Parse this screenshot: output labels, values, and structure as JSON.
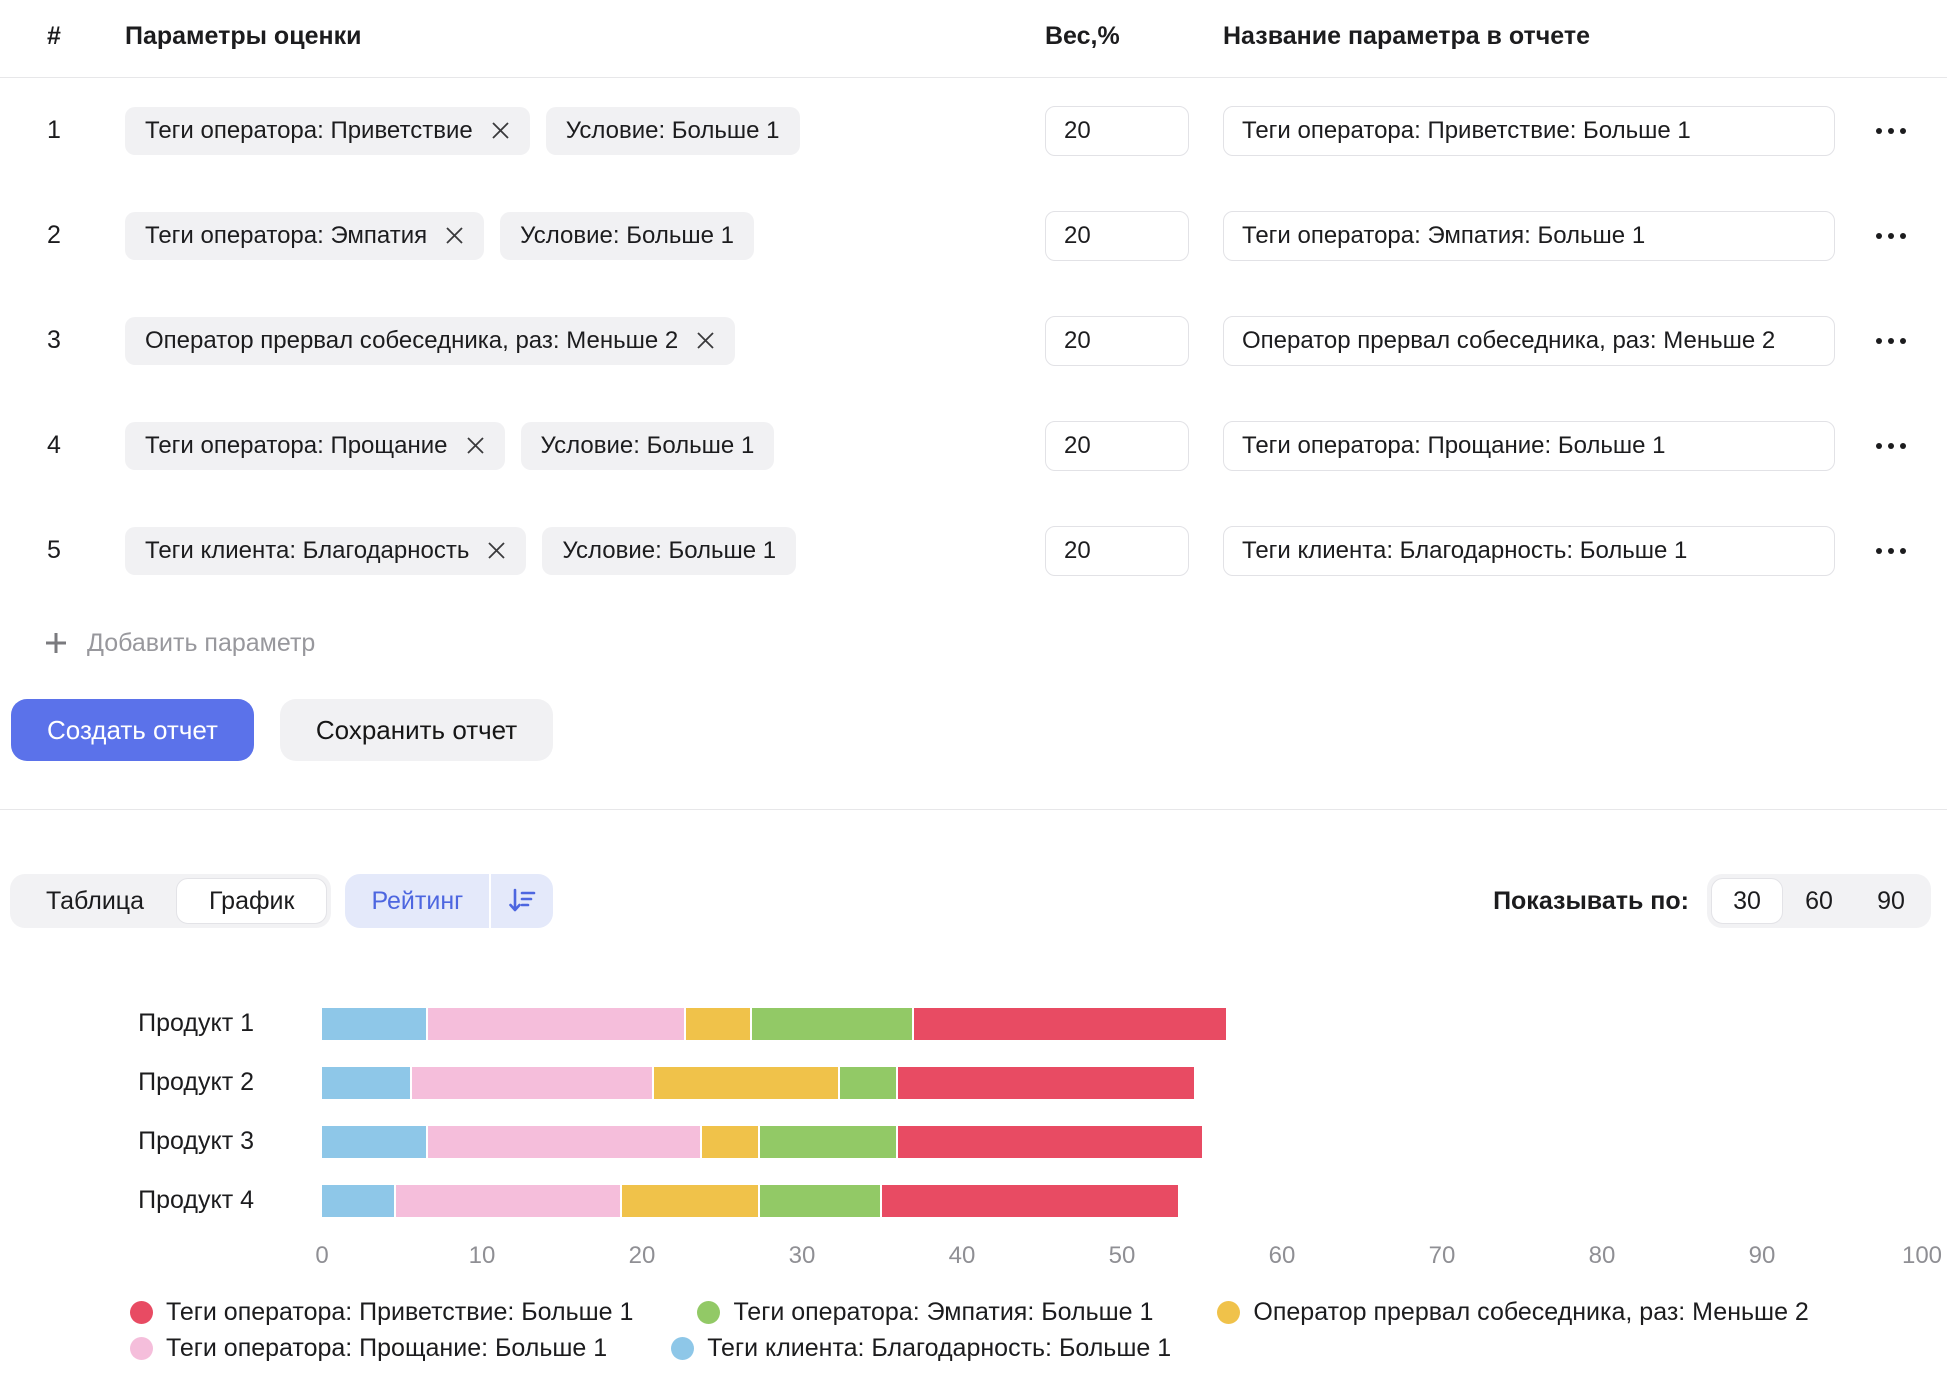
{
  "table": {
    "headers": {
      "index": "#",
      "params": "Параметры оценки",
      "weight": "Вес,%",
      "report_name": "Название параметра в отчете"
    },
    "rows": [
      {
        "index": "1",
        "tags": [
          {
            "label": "Теги оператора: Приветствие",
            "removable": true
          },
          {
            "label": "Условие: Больше 1",
            "removable": false
          }
        ],
        "weight": "20",
        "report_name": "Теги оператора: Приветствие: Больше 1"
      },
      {
        "index": "2",
        "tags": [
          {
            "label": "Теги оператора: Эмпатия",
            "removable": true
          },
          {
            "label": "Условие: Больше 1",
            "removable": false
          }
        ],
        "weight": "20",
        "report_name": "Теги оператора: Эмпатия: Больше 1"
      },
      {
        "index": "3",
        "tags": [
          {
            "label": "Оператор прервал собеседника, раз: Меньше 2",
            "removable": true
          }
        ],
        "weight": "20",
        "report_name": "Оператор прервал собеседника, раз: Меньше 2"
      },
      {
        "index": "4",
        "tags": [
          {
            "label": "Теги оператора: Прощание",
            "removable": true
          },
          {
            "label": "Условие: Больше 1",
            "removable": false
          }
        ],
        "weight": "20",
        "report_name": "Теги оператора: Прощание: Больше 1"
      },
      {
        "index": "5",
        "tags": [
          {
            "label": "Теги клиента: Благодарность",
            "removable": true
          },
          {
            "label": "Условие: Больше 1",
            "removable": false
          }
        ],
        "weight": "20",
        "report_name": "Теги клиента: Благодарность: Больше 1"
      }
    ],
    "add_param_label": "Добавить параметр"
  },
  "actions": {
    "create_label": "Создать отчет",
    "save_label": "Сохранить отчет"
  },
  "view_controls": {
    "tabs": [
      {
        "label": "Таблица",
        "active": false
      },
      {
        "label": "График",
        "active": true
      }
    ],
    "rating_label": "Рейтинг",
    "sort_icon": "sort-descending-icon",
    "show_by_label": "Показывать по:",
    "page_sizes": [
      {
        "label": "30",
        "active": true
      },
      {
        "label": "60",
        "active": false
      },
      {
        "label": "90",
        "active": false
      }
    ]
  },
  "colors": {
    "primary_button": "#5b72ea",
    "rating_pill_bg": "#e4e9fa",
    "rating_text": "#4d66e0",
    "chip_bg": "#f1f1f3",
    "axis_text": "#8f8f94"
  },
  "chart_data": {
    "type": "bar",
    "orientation": "horizontal-stacked",
    "categories": [
      "Продукт 1",
      "Продукт 2",
      "Продукт 3",
      "Продукт 4"
    ],
    "series": [
      {
        "name": "Теги клиента: Благодарность: Больше 1",
        "color": "#8ec7e8",
        "values": [
          6.5,
          5.5,
          6.5,
          4.5
        ]
      },
      {
        "name": "Теги оператора: Прощание: Больше 1",
        "color": "#f5bedb",
        "values": [
          16,
          15,
          17,
          14
        ]
      },
      {
        "name": "Оператор прервал собеседника, раз: Меньше 2",
        "color": "#f0c24a",
        "values": [
          4,
          11.5,
          3.5,
          8.5
        ]
      },
      {
        "name": "Теги оператора: Эмпатия: Больше 1",
        "color": "#92c966",
        "values": [
          10,
          3.5,
          8.5,
          7.5
        ]
      },
      {
        "name": "Теги оператора: Приветствие: Больше 1",
        "color": "#e84b63",
        "values": [
          19.5,
          18.5,
          19,
          18.5
        ]
      }
    ],
    "xlim": [
      0,
      100
    ],
    "x_ticks": [
      0,
      10,
      20,
      30,
      40,
      50,
      60,
      70,
      80,
      90,
      100
    ],
    "grid": false,
    "legend_position": "bottom",
    "legend_rows": [
      [
        4,
        3,
        2
      ],
      [
        1,
        0
      ]
    ]
  }
}
